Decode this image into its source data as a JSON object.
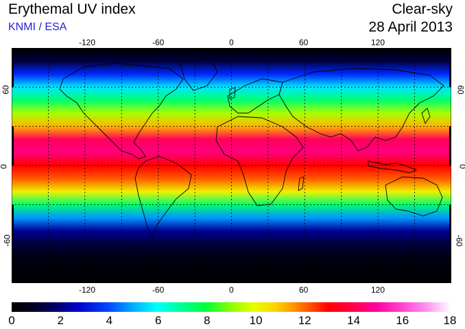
{
  "header": {
    "title": "Erythemal UV index",
    "source": "KNMI / ESA",
    "mode": "Clear-sky",
    "date": "28 April 2013"
  },
  "map": {
    "lon_ticks": [
      "-120",
      "-60",
      "0",
      "60",
      "120"
    ],
    "lat_ticks_left": [
      "60",
      "0",
      "-60"
    ],
    "lat_ticks_right": [
      "60",
      "0",
      "-60"
    ],
    "grid": true,
    "uv_bands": [
      {
        "lat": 90,
        "uv": 0
      },
      {
        "lat": 80,
        "uv": 1
      },
      {
        "lat": 70,
        "uv": 3
      },
      {
        "lat": 60,
        "uv": 5
      },
      {
        "lat": 50,
        "uv": 7
      },
      {
        "lat": 40,
        "uv": 9
      },
      {
        "lat": 30,
        "uv": 11
      },
      {
        "lat": 20,
        "uv": 14
      },
      {
        "lat": 10,
        "uv": 14.5
      },
      {
        "lat": 0,
        "uv": 13
      },
      {
        "lat": -10,
        "uv": 12
      },
      {
        "lat": -20,
        "uv": 10
      },
      {
        "lat": -30,
        "uv": 7
      },
      {
        "lat": -40,
        "uv": 4
      },
      {
        "lat": -50,
        "uv": 2
      },
      {
        "lat": -60,
        "uv": 1
      },
      {
        "lat": -70,
        "uv": 0.3
      },
      {
        "lat": -90,
        "uv": 0
      }
    ]
  },
  "colorbar": {
    "labels": [
      "0",
      "2",
      "4",
      "6",
      "8",
      "10",
      "12",
      "14",
      "16",
      "18"
    ]
  }
}
